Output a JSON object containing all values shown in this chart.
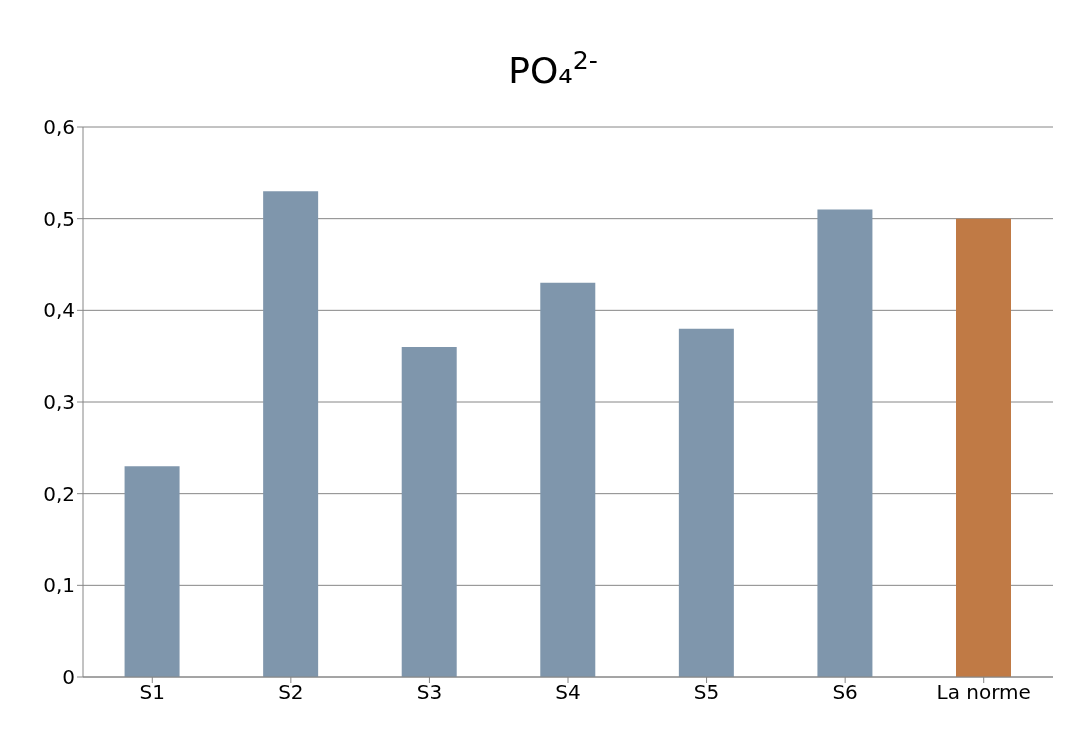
{
  "chart_data": {
    "type": "bar",
    "title": "PO₄$^{2-}$",
    "categories": [
      "S1",
      "S2",
      "S3",
      "S4",
      "S5",
      "S6",
      "La norme"
    ],
    "values": [
      0.23,
      0.53,
      0.36,
      0.43,
      0.38,
      0.51,
      0.5
    ],
    "colors": [
      "#7f96ac",
      "#7f96ac",
      "#7f96ac",
      "#7f96ac",
      "#7f96ac",
      "#7f96ac",
      "#c07a45"
    ],
    "ylim": [
      0,
      0.6
    ],
    "yticks": [
      0,
      {
        "value": 0.1,
        "label": "0,1"
      },
      {
        "value": 0.2,
        "label": "0,2"
      },
      {
        "value": 0.3,
        "label": "0,3"
      },
      {
        "value": 0.4,
        "label": "0,4"
      },
      {
        "value": 0.5,
        "label": "0,5"
      },
      {
        "value": 0.6,
        "label": "0,6"
      }
    ],
    "grid": "y",
    "legend": false
  }
}
